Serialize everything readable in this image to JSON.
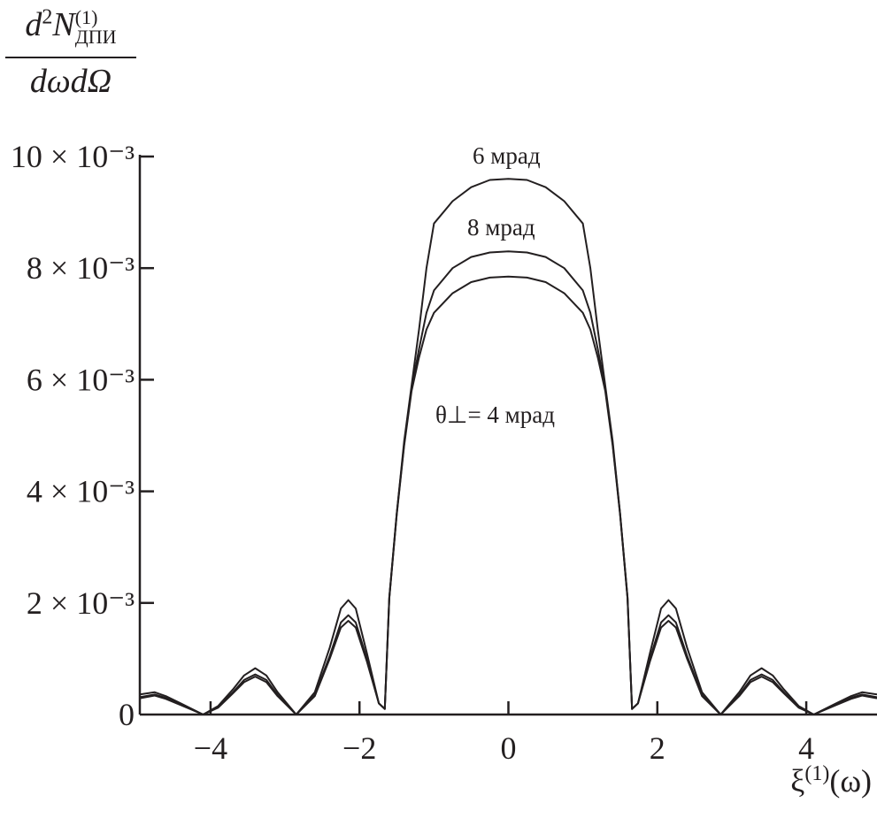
{
  "chart_data": {
    "type": "line",
    "title": "",
    "ylabel": {
      "numerator_base": "d",
      "numerator_power": "2",
      "numerator_symbol": "N",
      "numerator_superscript": "(1)",
      "numerator_subscript": "ДПИ",
      "denominator": "dωdΩ"
    },
    "xlabel": {
      "base": "ξ",
      "superscript": "(1)",
      "suffix": "(ω)"
    },
    "xlim": [
      -4.95,
      4.95
    ],
    "ylim": [
      0,
      0.01
    ],
    "grid": false,
    "x_ticks": [
      -4,
      -2,
      0,
      2,
      4
    ],
    "x_tick_labels": [
      "−4",
      "−2",
      "0",
      "2",
      "4"
    ],
    "y_ticks": [
      0,
      0.002,
      0.004,
      0.006,
      0.008,
      0.01
    ],
    "y_tick_labels": [
      "0",
      "2 × 10⁻³",
      "4 × 10⁻³",
      "6 × 10⁻³",
      "8 × 10⁻³",
      "10 × 10⁻³"
    ],
    "line_color": "#231f20",
    "x_half": [
      0,
      0.25,
      0.5,
      0.75,
      1.0,
      1.1,
      1.2,
      1.3,
      1.4,
      1.5,
      1.6,
      1.66,
      1.74,
      1.9,
      2.05,
      2.15,
      2.25,
      2.4,
      2.6,
      2.85,
      3.1,
      3.25,
      3.4,
      3.55,
      3.7,
      3.9,
      4.1,
      4.4,
      4.6,
      4.75,
      4.95
    ],
    "symmetric": true,
    "series": [
      {
        "name": "6 мрад",
        "values_e3": [
          9.6,
          9.58,
          9.45,
          9.2,
          8.8,
          8.0,
          6.9,
          5.9,
          4.9,
          3.6,
          2.1,
          0.1,
          0.2,
          1.1,
          1.9,
          2.05,
          1.9,
          1.2,
          0.4,
          0.0,
          0.4,
          0.7,
          0.83,
          0.7,
          0.45,
          0.15,
          0.0,
          0.2,
          0.33,
          0.4,
          0.36
        ]
      },
      {
        "name": "8 мрад",
        "values_e3": [
          8.3,
          8.28,
          8.2,
          8.0,
          7.6,
          7.2,
          6.55,
          5.85,
          4.85,
          3.6,
          2.1,
          0.1,
          0.2,
          1.0,
          1.65,
          1.78,
          1.65,
          1.05,
          0.35,
          0.0,
          0.35,
          0.62,
          0.72,
          0.62,
          0.4,
          0.13,
          0.0,
          0.18,
          0.3,
          0.36,
          0.31
        ]
      },
      {
        "name": "θ⊥= 4 мрад",
        "values_e3": [
          7.85,
          7.83,
          7.75,
          7.55,
          7.2,
          6.9,
          6.4,
          5.8,
          4.82,
          3.58,
          2.08,
          0.1,
          0.2,
          0.95,
          1.56,
          1.68,
          1.56,
          1.0,
          0.33,
          0.0,
          0.33,
          0.58,
          0.68,
          0.58,
          0.38,
          0.12,
          0.0,
          0.17,
          0.28,
          0.34,
          0.29
        ]
      }
    ],
    "annotations": [
      "6 мрад",
      "8 мрад",
      "θ⊥= 4 мрад"
    ]
  }
}
